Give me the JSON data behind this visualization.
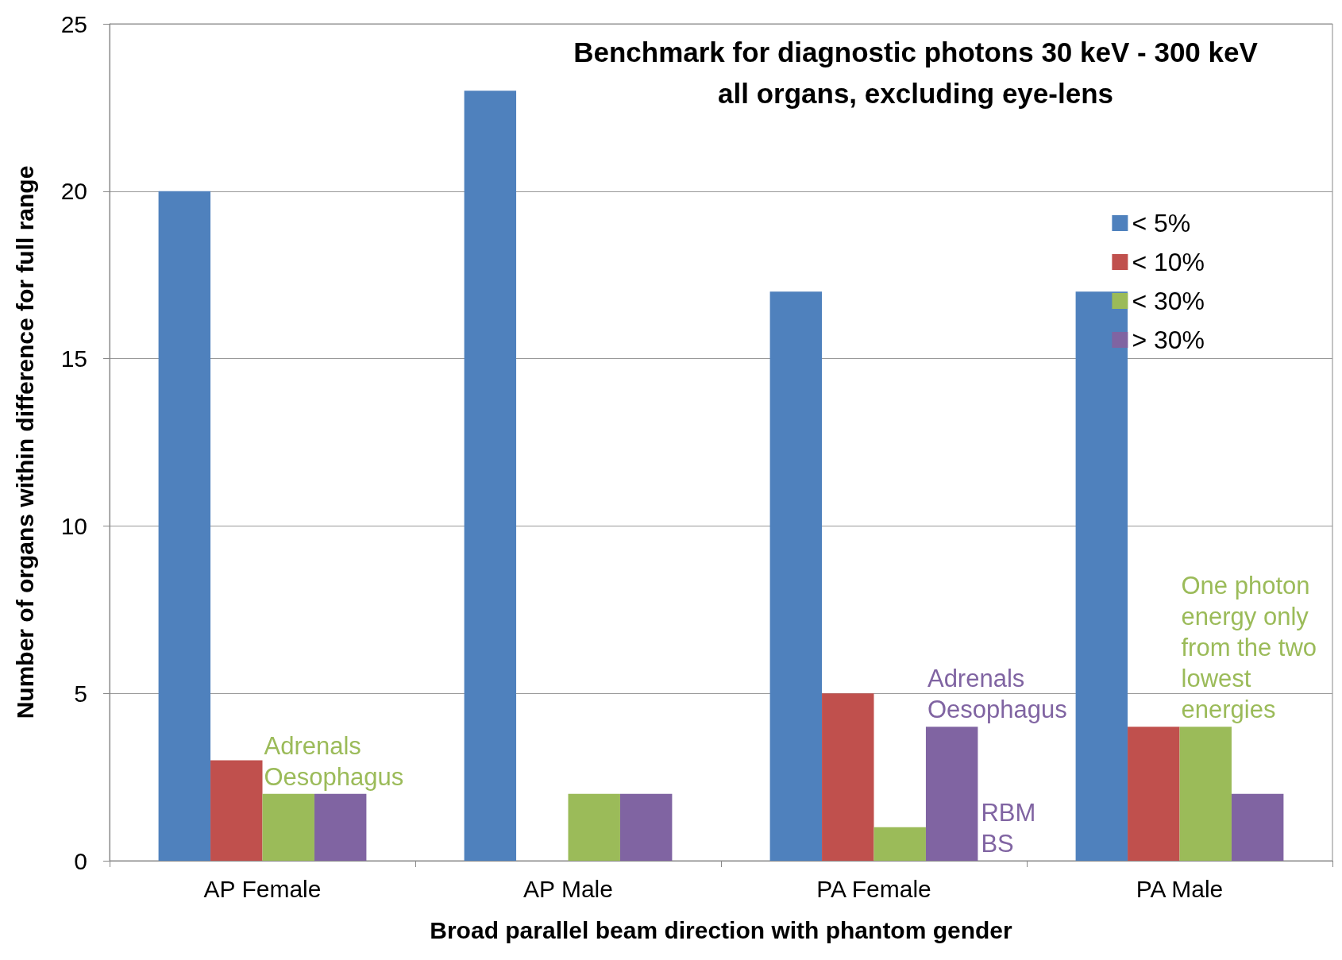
{
  "chart_data": {
    "type": "bar",
    "title": "Benchmark for diagnostic photons 30 keV - 300 keV\nall organs, excluding eye-lens",
    "xlabel": "Broad parallel beam direction with phantom gender",
    "ylabel": "Number of organs within difference for full range",
    "categories": [
      "AP Female",
      "AP Male",
      "PA Female",
      "PA Male"
    ],
    "series": [
      {
        "name": "< 5%",
        "color": "#4f81bd",
        "values": [
          20,
          23,
          17,
          17
        ]
      },
      {
        "name": "< 10%",
        "color": "#c0504d",
        "values": [
          3,
          0,
          5,
          4
        ]
      },
      {
        "name": "< 30%",
        "color": "#9bbb59",
        "values": [
          2,
          2,
          1,
          4
        ]
      },
      {
        "name": "> 30%",
        "color": "#8064a2",
        "values": [
          2,
          2,
          4,
          2
        ]
      }
    ],
    "ylim": [
      0,
      25
    ],
    "yticks": [
      0,
      5,
      10,
      15,
      20,
      25
    ],
    "grid": "y",
    "legend": "top right",
    "annotations": [
      {
        "text": "Adrenals\nOesophagus",
        "x": "AP Female",
        "y": 2
      },
      {
        "text": "Adrenals\nOesophagus",
        "x": "PA Female",
        "y": 4
      },
      "RBM\nBS",
      {
        "text": "One photon\nenergy only\nfrom the two\nlowest\nenergies",
        "x": "PA Male",
        "y": 4
      }
    ]
  }
}
